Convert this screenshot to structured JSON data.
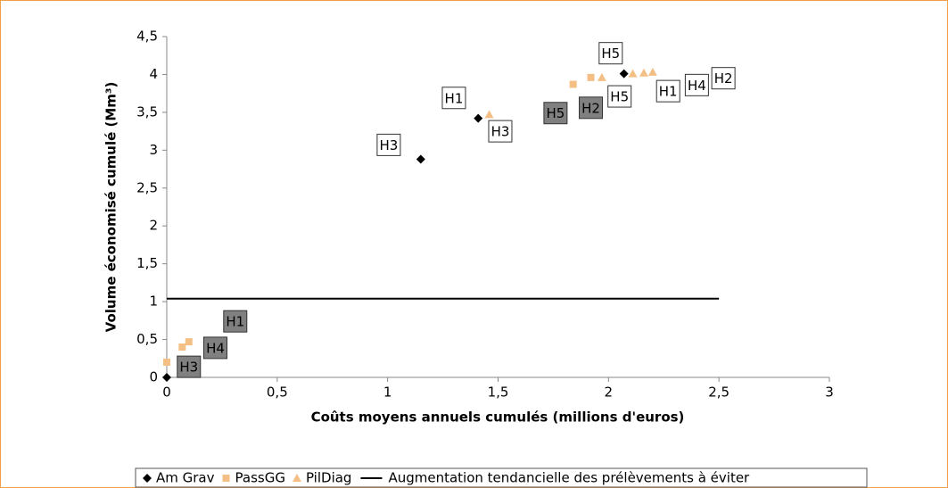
{
  "chart_data": {
    "type": "scatter",
    "x_label": "Coûts moyens annuels cumulés (millions d'euros)",
    "y_label": "Volume économisé cumulé (Mm³)",
    "xlim": [
      0,
      3
    ],
    "xticks": [
      0,
      {
        "value": 0.5,
        "label": "0,5"
      },
      1,
      {
        "value": 1.5,
        "label": "1,5"
      },
      2,
      {
        "value": 2.5,
        "label": "2,5"
      },
      3
    ],
    "ylim": [
      0,
      4.5
    ],
    "yticks": [
      0,
      {
        "value": 0.5,
        "label": "0,5"
      },
      1,
      {
        "value": 1.5,
        "label": "1,5"
      },
      2,
      {
        "value": 2.5,
        "label": "2,5"
      },
      3,
      {
        "value": 3.5,
        "label": "3,5"
      },
      4,
      {
        "value": 4.5,
        "label": "4,5"
      }
    ],
    "series": [
      {
        "name": "Am Grav",
        "color": "#000000",
        "marker": "diamond",
        "x": [
          0,
          1.15,
          1.41,
          2.07
        ],
        "values": [
          0,
          2.88,
          3.42,
          4.01
        ]
      },
      {
        "name": "PassGG",
        "color": "#f4bf85",
        "marker": "square",
        "x": [
          0,
          0.07,
          0.1,
          1.84,
          1.92
        ],
        "values": [
          0.2,
          0.4,
          0.47,
          3.87,
          3.96
        ]
      },
      {
        "name": "PilDiag",
        "color": "#f4bf85",
        "marker": "triangle",
        "x": [
          1.46,
          1.97,
          2.11,
          2.16,
          2.2
        ],
        "values": [
          3.47,
          3.96,
          4.01,
          4.02,
          4.03
        ]
      },
      {
        "name": "Augmentation tendancielle des prélèvements à éviter",
        "color": "#000000",
        "marker": "line",
        "x": [
          0,
          2.5
        ],
        "values": [
          1.04,
          1.04
        ]
      }
    ],
    "annotations": [
      {
        "text": "H3",
        "x": 1.005,
        "y": 3.07,
        "fill": "#ffffff"
      },
      {
        "text": "H1",
        "x": 1.3,
        "y": 3.69,
        "fill": "#ffffff"
      },
      {
        "text": "H3",
        "x": 1.51,
        "y": 3.25,
        "fill": "#ffffff"
      },
      {
        "text": "H5",
        "x": 2.01,
        "y": 4.28,
        "fill": "#ffffff"
      },
      {
        "text": "H5",
        "x": 1.76,
        "y": 3.49,
        "fill": "#808080"
      },
      {
        "text": "H2",
        "x": 1.92,
        "y": 3.56,
        "fill": "#808080"
      },
      {
        "text": "H5",
        "x": 2.05,
        "y": 3.71,
        "fill": "#ffffff"
      },
      {
        "text": "H1",
        "x": 2.27,
        "y": 3.78,
        "fill": "#ffffff"
      },
      {
        "text": "H4",
        "x": 2.4,
        "y": 3.86,
        "fill": "#ffffff"
      },
      {
        "text": "H2",
        "x": 2.52,
        "y": 3.95,
        "fill": "#ffffff"
      },
      {
        "text": "H1",
        "x": 0.31,
        "y": 0.74,
        "fill": "#808080"
      },
      {
        "text": "H4",
        "x": 0.22,
        "y": 0.39,
        "fill": "#808080"
      },
      {
        "text": "H3",
        "x": 0.1,
        "y": 0.14,
        "fill": "#808080"
      }
    ]
  }
}
